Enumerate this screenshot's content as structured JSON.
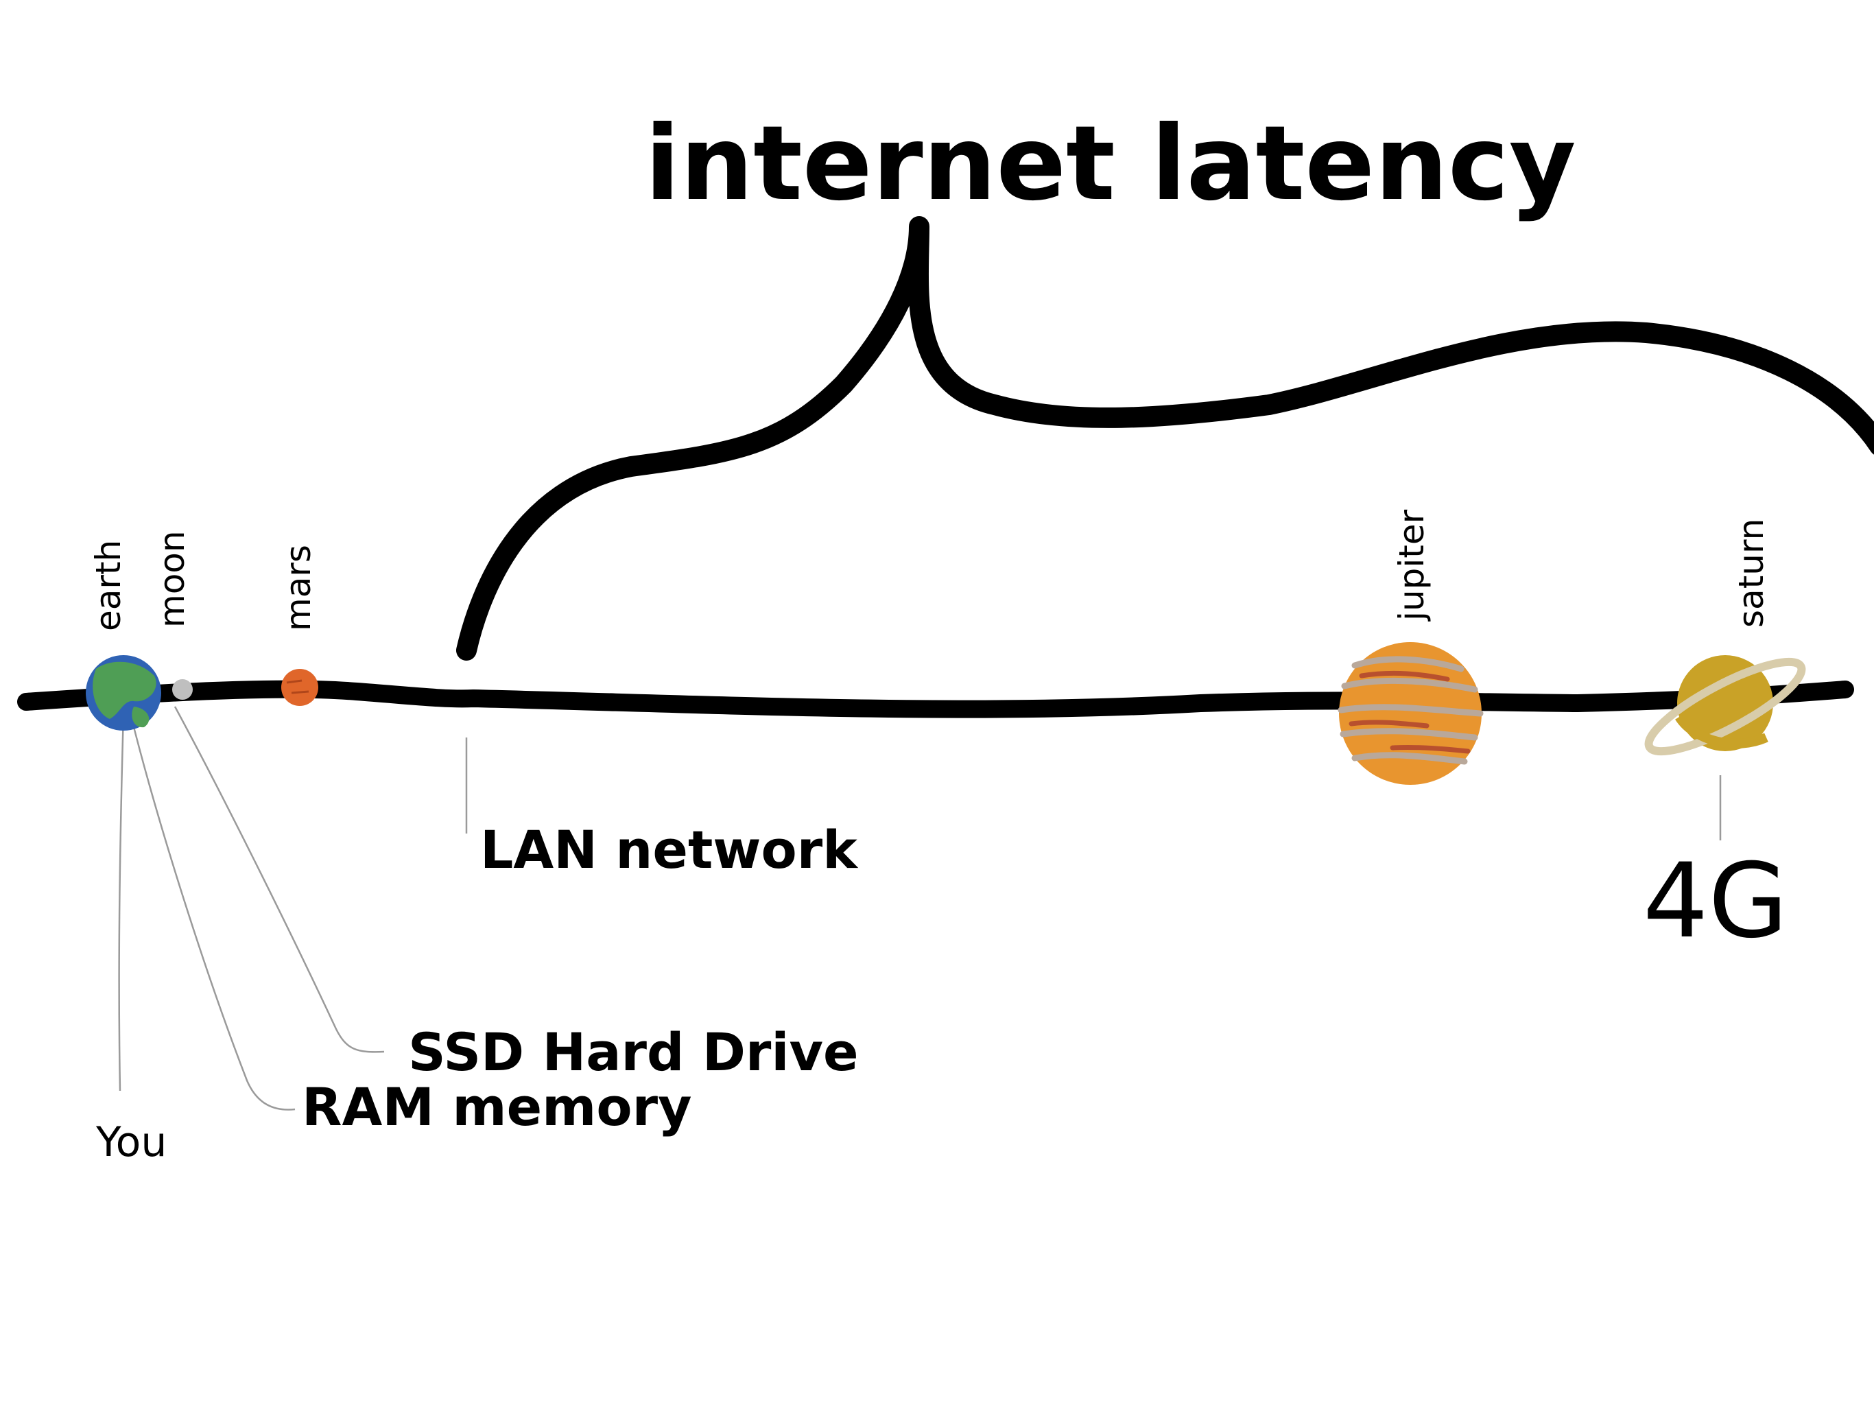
{
  "title": "internet latency",
  "planets": {
    "earth": "earth",
    "moon": "moon",
    "mars": "mars",
    "jupiter": "jupiter",
    "saturn": "saturn"
  },
  "labels": {
    "you": "You",
    "ram": "RAM memory",
    "ssd": "SSD Hard Drive",
    "lan": "LAN network",
    "fourg": "4G"
  },
  "colors": {
    "line": "#000000",
    "earth_ocean": "#2f62b4",
    "earth_land": "#4f9e55",
    "moon": "#bfbfbf",
    "mars": "#e0662a",
    "jupiter": "#e8952f",
    "jupiter_bands": "#b9a89a",
    "saturn": "#c9a227",
    "saturn_ring": "#d8ccaa",
    "leader": "#9a9a9a"
  }
}
